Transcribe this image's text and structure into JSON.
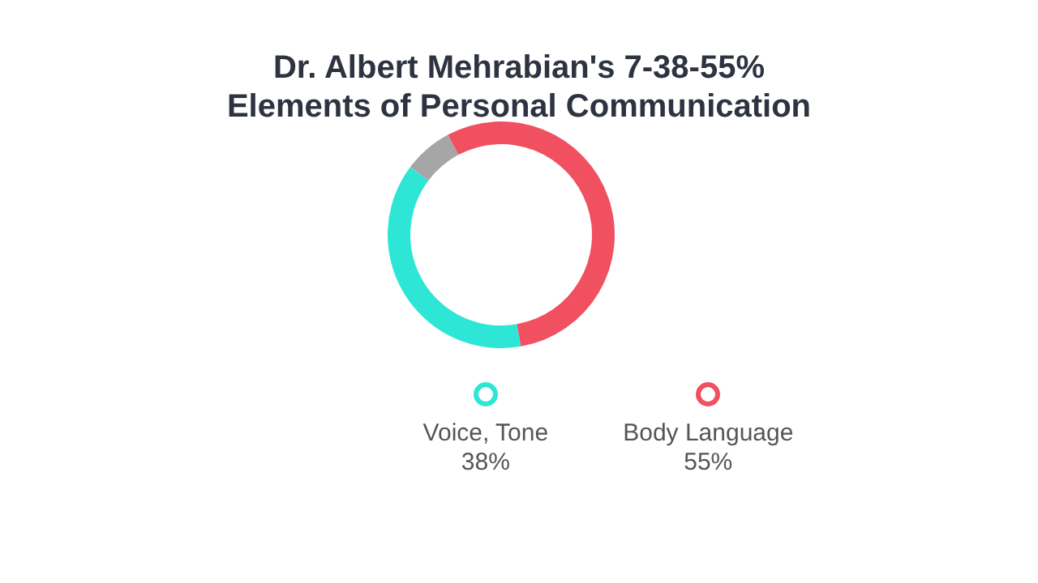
{
  "chart_data": {
    "type": "donut",
    "title": "Dr. Albert Mehrabian's 7-38-55%\nElements of Personal Communication",
    "categories": [
      "Voice, Tone",
      null,
      "Body Language"
    ],
    "values": [
      38,
      7,
      55
    ],
    "colors": [
      "#2ee6d6",
      "#a6a6a6",
      "#f0505f"
    ],
    "value_labels": [
      "38%",
      null,
      "55%"
    ],
    "legend": "bottom"
  }
}
